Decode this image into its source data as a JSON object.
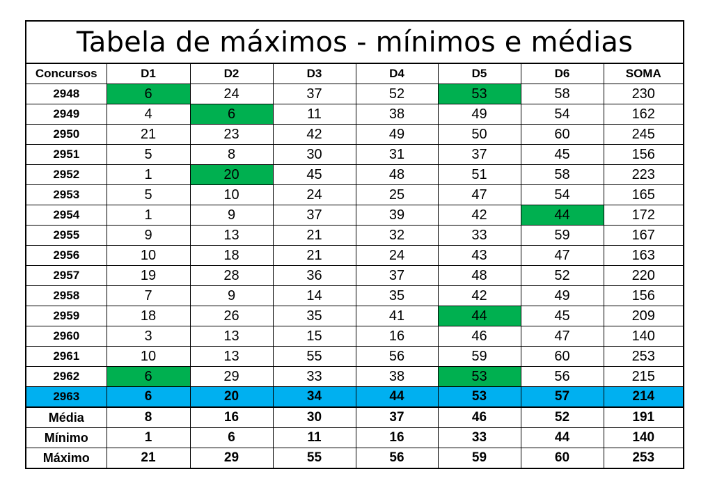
{
  "title": "Tabela de máximos - mínimos e médias",
  "columns": [
    "Concursos",
    "D1",
    "D2",
    "D3",
    "D4",
    "D5",
    "D6",
    "SOMA"
  ],
  "highlight_color": "#00b050",
  "current_row_color": "#00b0f0",
  "rows": [
    {
      "concurso": "2948",
      "values": [
        "6",
        "24",
        "37",
        "52",
        "53",
        "58",
        "230"
      ],
      "highlight": [
        0,
        4
      ]
    },
    {
      "concurso": "2949",
      "values": [
        "4",
        "6",
        "11",
        "38",
        "49",
        "54",
        "162"
      ],
      "highlight": [
        1
      ]
    },
    {
      "concurso": "2950",
      "values": [
        "21",
        "23",
        "42",
        "49",
        "50",
        "60",
        "245"
      ],
      "highlight": []
    },
    {
      "concurso": "2951",
      "values": [
        "5",
        "8",
        "30",
        "31",
        "37",
        "45",
        "156"
      ],
      "highlight": []
    },
    {
      "concurso": "2952",
      "values": [
        "1",
        "20",
        "45",
        "48",
        "51",
        "58",
        "223"
      ],
      "highlight": [
        1
      ]
    },
    {
      "concurso": "2953",
      "values": [
        "5",
        "10",
        "24",
        "25",
        "47",
        "54",
        "165"
      ],
      "highlight": []
    },
    {
      "concurso": "2954",
      "values": [
        "1",
        "9",
        "37",
        "39",
        "42",
        "44",
        "172"
      ],
      "highlight": [
        5
      ]
    },
    {
      "concurso": "2955",
      "values": [
        "9",
        "13",
        "21",
        "32",
        "33",
        "59",
        "167"
      ],
      "highlight": []
    },
    {
      "concurso": "2956",
      "values": [
        "10",
        "18",
        "21",
        "24",
        "43",
        "47",
        "163"
      ],
      "highlight": []
    },
    {
      "concurso": "2957",
      "values": [
        "19",
        "28",
        "36",
        "37",
        "48",
        "52",
        "220"
      ],
      "highlight": []
    },
    {
      "concurso": "2958",
      "values": [
        "7",
        "9",
        "14",
        "35",
        "42",
        "49",
        "156"
      ],
      "highlight": []
    },
    {
      "concurso": "2959",
      "values": [
        "18",
        "26",
        "35",
        "41",
        "44",
        "45",
        "209"
      ],
      "highlight": [
        4
      ]
    },
    {
      "concurso": "2960",
      "values": [
        "3",
        "13",
        "15",
        "16",
        "46",
        "47",
        "140"
      ],
      "highlight": []
    },
    {
      "concurso": "2961",
      "values": [
        "10",
        "13",
        "55",
        "56",
        "59",
        "60",
        "253"
      ],
      "highlight": []
    },
    {
      "concurso": "2962",
      "values": [
        "6",
        "29",
        "33",
        "38",
        "53",
        "56",
        "215"
      ],
      "highlight": [
        0,
        4
      ]
    }
  ],
  "current_row": {
    "concurso": "2963",
    "values": [
      "6",
      "20",
      "34",
      "44",
      "53",
      "57",
      "214"
    ]
  },
  "stats": [
    {
      "label": "Média",
      "values": [
        "8",
        "16",
        "30",
        "37",
        "46",
        "52",
        "191"
      ]
    },
    {
      "label": "Mínimo",
      "values": [
        "1",
        "6",
        "11",
        "16",
        "33",
        "44",
        "140"
      ]
    },
    {
      "label": "Máximo",
      "values": [
        "21",
        "29",
        "55",
        "56",
        "59",
        "60",
        "253"
      ]
    }
  ]
}
